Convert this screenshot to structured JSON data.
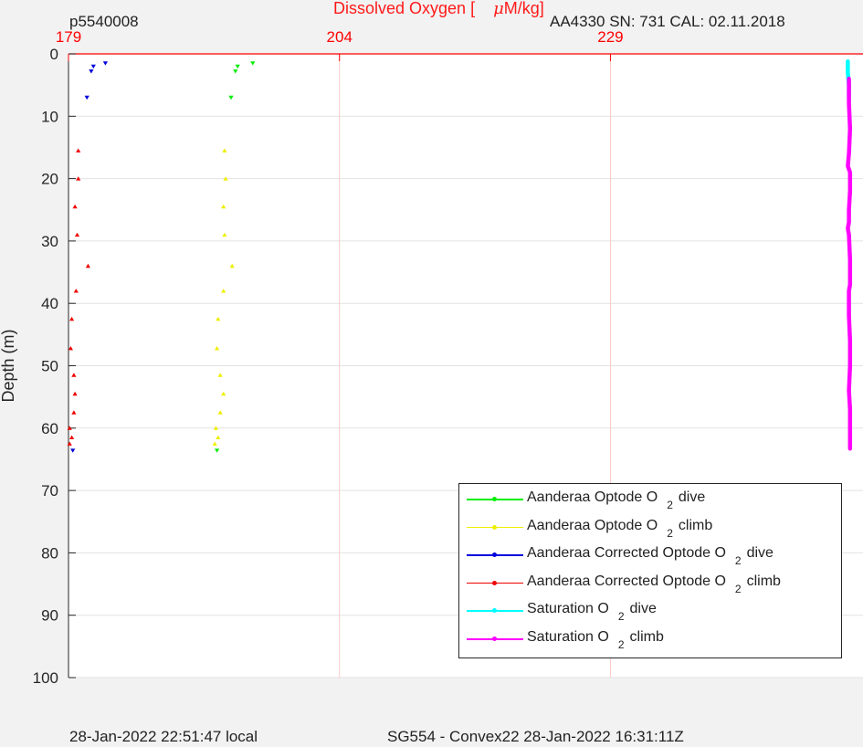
{
  "header": {
    "profile_id": "p5540008",
    "title_prefix": "Dissolved Oxygen [",
    "title_unit_mu": "μ",
    "title_unit_rest": "M/kg]",
    "sensor_info": "AA4330   SN: 731  CAL: 02.11.2018"
  },
  "footer": {
    "local_time": "28-Jan-2022 22:51:47 local",
    "mission": "SG554 - Convex22 28-Jan-2022 16:31:11Z"
  },
  "colors": {
    "axis_top": "#ff0000",
    "grid_vertical": "#ffc9c9",
    "grid_horizontal": "#e2e2e2",
    "plot_bg": "#ffffff",
    "page_bg": "#f2f2f2"
  },
  "chart_data": {
    "type": "scatter",
    "title": "Dissolved Oxygen [ μM/kg]",
    "xlabel": "",
    "ylabel": "Depth (m)",
    "xlim": [
      179,
      252.3
    ],
    "ylim": [
      0,
      100
    ],
    "y_reversed": true,
    "xticks": [
      "179",
      "204",
      "229"
    ],
    "xtick_values": [
      179,
      204,
      229
    ],
    "yticks": [
      "0",
      "10",
      "20",
      "30",
      "40",
      "50",
      "60",
      "70",
      "80",
      "90",
      "100"
    ],
    "ytick_values": [
      0,
      10,
      20,
      30,
      40,
      50,
      60,
      70,
      80,
      90,
      100
    ],
    "grid": true,
    "legend_position": "bottom-right",
    "series": [
      {
        "name": "Aanderaa Optode O",
        "sub": "2",
        "suffix": "dive",
        "color": "#00ee00",
        "marker": "triangle-down",
        "points": [
          [
            196.0,
            1.5
          ],
          [
            194.6,
            2.0
          ],
          [
            194.4,
            2.8
          ],
          [
            194.0,
            7.0
          ],
          [
            192.7,
            63.6
          ]
        ]
      },
      {
        "name": "Aanderaa Optode O",
        "sub": "2",
        "suffix": "climb",
        "color": "#eeee00",
        "marker": "triangle-up",
        "points": [
          [
            193.4,
            15.5
          ],
          [
            193.5,
            20.0
          ],
          [
            193.3,
            24.5
          ],
          [
            193.4,
            29.0
          ],
          [
            194.1,
            34.0
          ],
          [
            193.3,
            38.0
          ],
          [
            192.8,
            42.5
          ],
          [
            192.7,
            47.2
          ],
          [
            193.0,
            51.5
          ],
          [
            193.3,
            54.5
          ],
          [
            193.0,
            57.5
          ],
          [
            192.6,
            60.0
          ],
          [
            192.8,
            61.5
          ],
          [
            192.5,
            62.5
          ]
        ]
      },
      {
        "name": "Aanderaa Corrected Optode O",
        "sub": "2",
        "suffix": "dive",
        "color": "#0000dd",
        "marker": "triangle-down",
        "points": [
          [
            182.4,
            1.5
          ],
          [
            181.3,
            2.0
          ],
          [
            181.1,
            2.8
          ],
          [
            180.7,
            7.0
          ],
          [
            179.4,
            63.6
          ]
        ]
      },
      {
        "name": "Aanderaa Corrected Optode O",
        "sub": "2",
        "suffix": "climb",
        "color": "#ee0000",
        "marker": "triangle-up",
        "points": [
          [
            179.9,
            15.5
          ],
          [
            179.9,
            20.0
          ],
          [
            179.6,
            24.5
          ],
          [
            179.8,
            29.0
          ],
          [
            180.8,
            34.0
          ],
          [
            179.7,
            38.0
          ],
          [
            179.3,
            42.5
          ],
          [
            179.2,
            47.2
          ],
          [
            179.5,
            51.5
          ],
          [
            179.6,
            54.5
          ],
          [
            179.5,
            57.5
          ],
          [
            179.1,
            60.0
          ],
          [
            179.3,
            61.5
          ],
          [
            179.1,
            62.5
          ]
        ]
      },
      {
        "name": "Saturation O",
        "sub": "2",
        "suffix": "dive",
        "color": "#00ffff",
        "marker": "line",
        "points": [
          [
            250.9,
            1.2
          ],
          [
            250.9,
            3.0
          ],
          [
            251.0,
            5.0
          ],
          [
            251.0,
            7.0
          ]
        ]
      },
      {
        "name": "Saturation O",
        "sub": "2",
        "suffix": "climb",
        "color": "#ff00ff",
        "marker": "line",
        "points": [
          [
            251.0,
            4.0
          ],
          [
            251.0,
            8.0
          ],
          [
            251.1,
            12.0
          ],
          [
            251.0,
            16.0
          ],
          [
            250.9,
            18.0
          ],
          [
            251.1,
            19.0
          ],
          [
            251.1,
            22.0
          ],
          [
            251.0,
            25.0
          ],
          [
            251.0,
            27.0
          ],
          [
            250.9,
            28.0
          ],
          [
            251.0,
            29.0
          ],
          [
            251.1,
            33.0
          ],
          [
            251.1,
            37.0
          ],
          [
            251.0,
            38.0
          ],
          [
            251.0,
            42.0
          ],
          [
            251.1,
            46.0
          ],
          [
            251.1,
            50.0
          ],
          [
            251.0,
            54.0
          ],
          [
            251.1,
            57.0
          ],
          [
            251.1,
            60.0
          ],
          [
            251.1,
            63.3
          ]
        ]
      }
    ]
  }
}
